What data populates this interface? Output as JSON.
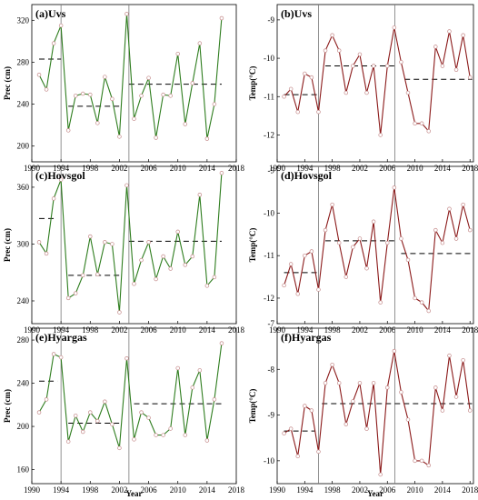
{
  "chart_data": [
    {
      "type": "line",
      "title": "(a)Uvs",
      "ylabel": "Prec (cm)",
      "xlabel": "",
      "xlim": [
        1990,
        2018
      ],
      "ylim": [
        185,
        335
      ],
      "xticks": [
        "1990",
        "1994",
        "1998",
        "2002",
        "2006",
        "2010",
        "2014",
        "2018"
      ],
      "yticks": [
        "200",
        "240",
        "280",
        "320"
      ],
      "color": "#2e7d1e",
      "x": [
        1991,
        1992,
        1993,
        1994,
        1995,
        1996,
        1997,
        1998,
        1999,
        2000,
        2001,
        2002,
        2003,
        2004,
        2005,
        2006,
        2007,
        2008,
        2009,
        2010,
        2011,
        2012,
        2013,
        2014,
        2015,
        2016
      ],
      "values": [
        268,
        254,
        298,
        315,
        215,
        248,
        250,
        249,
        222,
        266,
        245,
        209,
        326,
        226,
        248,
        265,
        208,
        249,
        248,
        288,
        221,
        260,
        298,
        207,
        240,
        322
      ],
      "change_points": [
        1994,
        2003.3
      ],
      "segment_means": [
        {
          "x": [
            1991,
            1994
          ],
          "y": 283
        },
        {
          "x": [
            1995,
            2002
          ],
          "y": 238
        },
        {
          "x": [
            2003.3,
            2016
          ],
          "y": 259
        }
      ]
    },
    {
      "type": "line",
      "title": "(b)Uvs",
      "ylabel": "Temp(°C)",
      "xlabel": "",
      "xlim": [
        1990,
        2018.5
      ],
      "ylim": [
        -12.7,
        -8.6
      ],
      "xticks": [
        "1990",
        "1994",
        "1998",
        "2002",
        "2006",
        "2010",
        "2014",
        "2018"
      ],
      "yticks": [
        "-12",
        "-11",
        "-10",
        "-9"
      ],
      "color": "#8b1a1a",
      "x": [
        1991,
        1992,
        1993,
        1994,
        1995,
        1996,
        1997,
        1998,
        1999,
        2000,
        2001,
        2002,
        2003,
        2004,
        2005,
        2006,
        2007,
        2008,
        2009,
        2010,
        2011,
        2012,
        2013,
        2014,
        2015,
        2016,
        2017,
        2018
      ],
      "values": [
        -11.0,
        -10.8,
        -11.4,
        -10.4,
        -10.5,
        -11.4,
        -9.8,
        -9.4,
        -9.8,
        -10.9,
        -10.2,
        -9.9,
        -10.9,
        -10.2,
        -12.0,
        -10.2,
        -9.2,
        -10.1,
        -10.9,
        -11.7,
        -11.7,
        -11.9,
        -9.7,
        -10.2,
        -9.3,
        -10.3,
        -9.4,
        -10.5
      ],
      "change_points": [
        1996,
        2007.1
      ],
      "segment_means": [
        {
          "x": [
            1991,
            1996
          ],
          "y": -10.95
        },
        {
          "x": [
            1997,
            2007
          ],
          "y": -10.2
        },
        {
          "x": [
            2008.5,
            2018.3
          ],
          "y": -10.55
        }
      ]
    },
    {
      "type": "line",
      "title": "(c)Hovsgol",
      "ylabel": "Prec (cm)",
      "xlabel": "",
      "xlim": [
        1990,
        2018
      ],
      "ylim": [
        216,
        382
      ],
      "xticks": [
        "1990",
        "1994",
        "1998",
        "2002",
        "2006",
        "2010",
        "2014",
        "2018"
      ],
      "yticks": [
        "240",
        "300",
        "360"
      ],
      "color": "#2e7d1e",
      "x": [
        1991,
        1992,
        1993,
        1994,
        1995,
        1996,
        1997,
        1998,
        1999,
        2000,
        2001,
        2002,
        2003,
        2004,
        2005,
        2006,
        2007,
        2008,
        2009,
        2010,
        2011,
        2012,
        2013,
        2014,
        2015,
        2016
      ],
      "values": [
        302,
        290,
        348,
        368,
        243,
        248,
        267,
        308,
        268,
        302,
        300,
        228,
        362,
        258,
        283,
        302,
        263,
        287,
        274,
        313,
        278,
        287,
        352,
        256,
        265,
        375
      ],
      "change_points": [
        1994,
        2003.3
      ],
      "segment_means": [
        {
          "x": [
            1991,
            1993
          ],
          "y": 327
        },
        {
          "x": [
            1995,
            2002
          ],
          "y": 267
        },
        {
          "x": [
            2003.3,
            2016
          ],
          "y": 303
        }
      ]
    },
    {
      "type": "line",
      "title": "(d)Hovsgol",
      "ylabel": "Temp(°C)",
      "xlabel": "",
      "xlim": [
        1990,
        2018.5
      ],
      "ylim": [
        -12.6,
        -8.9
      ],
      "xticks": [
        "1990",
        "1994",
        "1998",
        "2002",
        "2006",
        "2010",
        "2014",
        "2018"
      ],
      "yticks": [
        "-12",
        "-11",
        "-10",
        "-9"
      ],
      "color": "#8b1a1a",
      "x": [
        1991,
        1992,
        1993,
        1994,
        1995,
        1996,
        1997,
        1998,
        1999,
        2000,
        2001,
        2002,
        2003,
        2004,
        2005,
        2006,
        2007,
        2008,
        2009,
        2010,
        2011,
        2012,
        2013,
        2014,
        2015,
        2016,
        2017,
        2018
      ],
      "values": [
        -11.7,
        -11.2,
        -11.9,
        -11.0,
        -10.9,
        -11.8,
        -10.4,
        -9.8,
        -10.7,
        -11.5,
        -10.8,
        -10.6,
        -11.3,
        -10.2,
        -12.1,
        -10.7,
        -9.4,
        -10.6,
        -11.1,
        -12.0,
        -12.1,
        -12.3,
        -10.4,
        -10.7,
        -9.9,
        -10.6,
        -9.8,
        -10.4
      ],
      "change_points": [
        1996,
        2007.1
      ],
      "segment_means": [
        {
          "x": [
            1991,
            1996
          ],
          "y": -11.4
        },
        {
          "x": [
            1997,
            2007
          ],
          "y": -10.65
        },
        {
          "x": [
            2008,
            2018.3
          ],
          "y": -10.95
        }
      ]
    },
    {
      "type": "line",
      "title": "(e)Hyargas",
      "ylabel": "Prec (cm)",
      "xlabel": "Year",
      "xlim": [
        1990,
        2018
      ],
      "ylim": [
        147,
        291
      ],
      "xticks": [
        "1990",
        "1994",
        "1998",
        "2002",
        "2006",
        "2010",
        "2014",
        "2018"
      ],
      "yticks": [
        "160",
        "200",
        "240",
        "280"
      ],
      "color": "#2e7d1e",
      "x": [
        1991,
        1992,
        1993,
        1994,
        1995,
        1996,
        1997,
        1998,
        1999,
        2000,
        2001,
        2002,
        2003,
        2004,
        2005,
        2006,
        2007,
        2008,
        2009,
        2010,
        2011,
        2012,
        2013,
        2014,
        2015,
        2016
      ],
      "values": [
        213,
        225,
        267,
        264,
        186,
        210,
        195,
        213,
        205,
        223,
        202,
        180,
        263,
        188,
        213,
        208,
        192,
        192,
        198,
        254,
        192,
        236,
        252,
        187,
        225,
        277
      ],
      "change_points": [
        1994,
        2003.3
      ],
      "segment_means": [
        {
          "x": [
            1991,
            1993.5
          ],
          "y": 242
        },
        {
          "x": [
            1995,
            2002
          ],
          "y": 203
        },
        {
          "x": [
            2004,
            2016
          ],
          "y": 221
        }
      ]
    },
    {
      "type": "line",
      "title": "(f)Hyargas",
      "ylabel": "Temp(°C)",
      "xlabel": "Year",
      "xlim": [
        1990,
        2018.5
      ],
      "ylim": [
        -10.5,
        -7.1
      ],
      "xticks": [
        "1990",
        "1994",
        "1998",
        "2002",
        "2006",
        "2010",
        "2014",
        "2018"
      ],
      "yticks": [
        "-10",
        "-9",
        "-8",
        "-7"
      ],
      "color": "#8b1a1a",
      "x": [
        1991,
        1992,
        1993,
        1994,
        1995,
        1996,
        1997,
        1998,
        1999,
        2000,
        2001,
        2002,
        2003,
        2004,
        2005,
        2006,
        2007,
        2008,
        2009,
        2010,
        2011,
        2012,
        2013,
        2014,
        2015,
        2016,
        2017,
        2018
      ],
      "values": [
        -9.4,
        -9.3,
        -9.9,
        -8.8,
        -8.9,
        -9.8,
        -8.3,
        -7.9,
        -8.3,
        -9.2,
        -8.7,
        -8.3,
        -9.3,
        -8.3,
        -10.3,
        -8.4,
        -7.6,
        -8.5,
        -9.1,
        -10.0,
        -10.0,
        -10.1,
        -8.4,
        -8.9,
        -7.7,
        -8.6,
        -7.8,
        -8.9
      ],
      "change_points": [
        1996,
        2007.1
      ],
      "segment_means": [
        {
          "x": [
            1991,
            1995.5
          ],
          "y": -9.35
        },
        {
          "x": [
            1996.5,
            2018.3
          ],
          "y": -8.75
        }
      ]
    }
  ]
}
